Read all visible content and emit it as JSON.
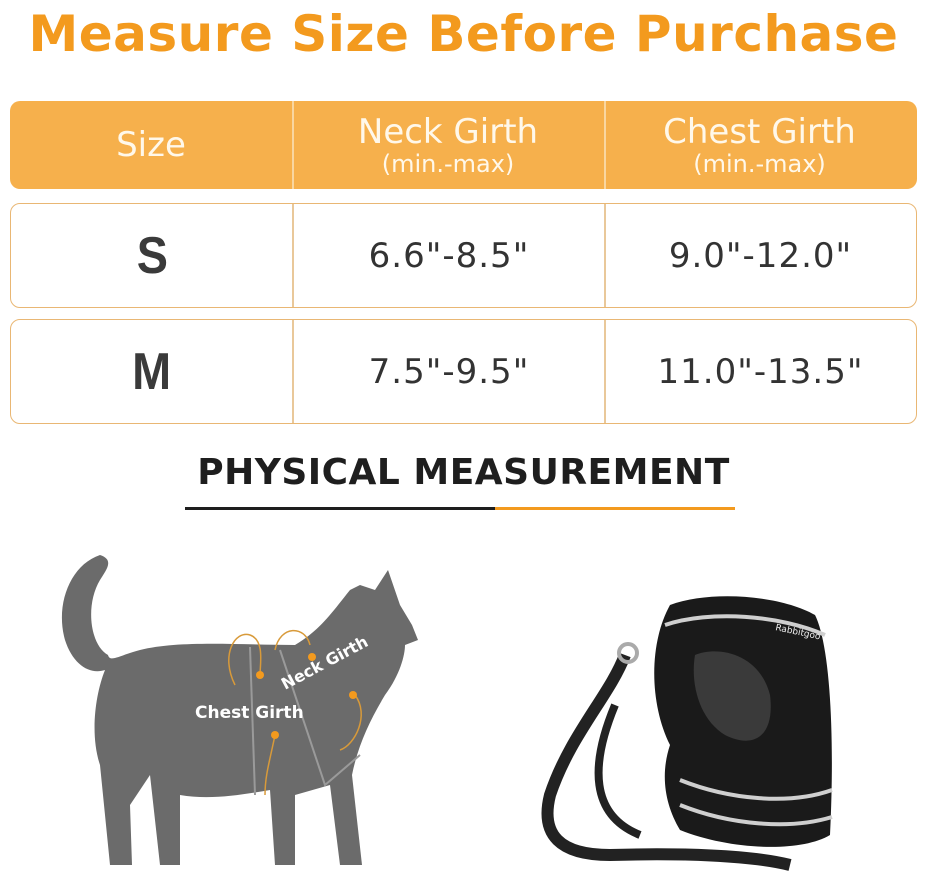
{
  "title": "Measure Size Before Purchase",
  "table": {
    "headers": [
      {
        "label": "Size",
        "sub": ""
      },
      {
        "label": "Neck Girth",
        "sub": "(min.-max)"
      },
      {
        "label": "Chest Girth",
        "sub": "(min.-max)"
      }
    ],
    "rows": [
      {
        "size": "S",
        "neck": "6.6\"-8.5\"",
        "chest": "9.0\"-12.0\""
      },
      {
        "size": "M",
        "neck": "7.5\"-9.5\"",
        "chest": "11.0\"-13.5\""
      }
    ]
  },
  "section_heading": "PHYSICAL MEASUREMENT",
  "diagram": {
    "neck_label": "Neck Girth",
    "chest_label": "Chest Girth"
  },
  "product": {
    "brand": "Rabbitgoo"
  },
  "colors": {
    "accent": "#f39a1e",
    "header_bg": "#f6b04c",
    "silhouette": "#6b6b6b"
  }
}
